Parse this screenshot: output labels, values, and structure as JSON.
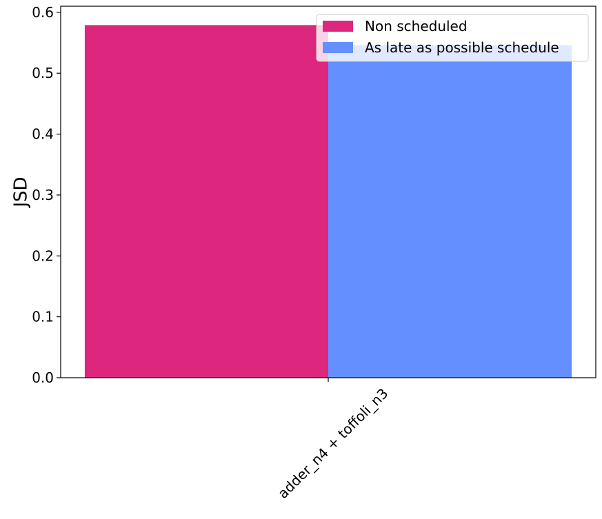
{
  "chart_data": {
    "type": "bar",
    "categories": [
      "adder_n4 + toffoli_n3"
    ],
    "series": [
      {
        "name": "Non scheduled",
        "values": [
          0.579
        ],
        "color": "#dd277e"
      },
      {
        "name": "As late as possible schedule",
        "values": [
          0.546
        ],
        "color": "#648fff"
      }
    ],
    "ylabel": "JSD",
    "xlabel": "",
    "ylim": [
      0,
      0.61
    ],
    "yticks": [
      0.0,
      0.1,
      0.2,
      0.3,
      0.4,
      0.5,
      0.6
    ],
    "ytick_labels": [
      "0.0",
      "0.1",
      "0.2",
      "0.3",
      "0.4",
      "0.5",
      "0.6"
    ],
    "grid": false,
    "legend": {
      "placement": "top-right"
    },
    "xtick_rotation_deg": 45
  }
}
